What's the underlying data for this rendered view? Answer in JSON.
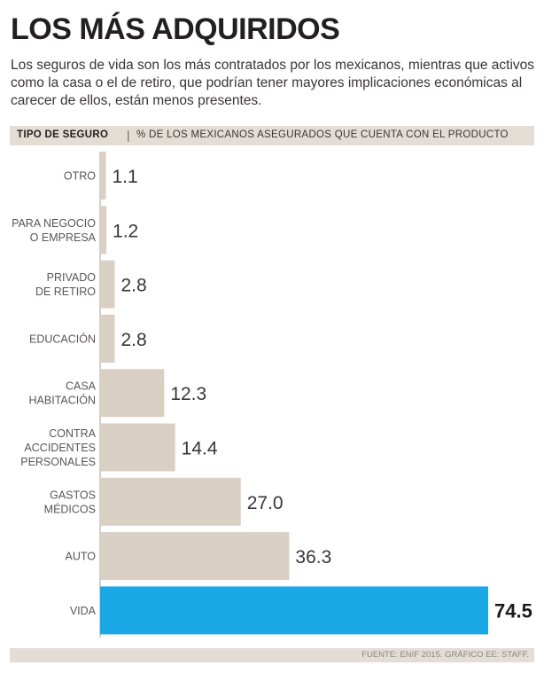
{
  "title": "LOS MÁS ADQUIRIDOS",
  "subtitle": "Los seguros de vida son los más contratados por los mexicanos, mientras que activos como la casa o el de retiro, que podrían tener mayores implicaciones económicas al carecer de ellos, están menos presentes.",
  "header": {
    "category_label": "TIPO DE SEGURO",
    "separator": "|",
    "value_label": "% DE LOS MEXICANOS ASEGURADOS QUE CUENTA CON EL PRODUCTO"
  },
  "footer": {
    "source": "FUENTE: ENIF 2015. GRÁFICO EE: STAFF."
  },
  "colors": {
    "bar": "#d9cfc3",
    "highlight": "#1aa7e6",
    "axis": "#c9bfb4",
    "label": "#5a5556",
    "value": "#3a3536",
    "highlight_value": "#1a1a1a"
  },
  "chart_data": {
    "type": "bar",
    "orientation": "horizontal",
    "title": "LOS MÁS ADQUIRIDOS",
    "xlabel": "% DE LOS MEXICANOS ASEGURADOS QUE CUENTA CON EL PRODUCTO",
    "ylabel": "TIPO DE SEGURO",
    "xlim": [
      0,
      80
    ],
    "grid": false,
    "categories": [
      [
        "OTRO"
      ],
      [
        "PARA NEGOCIO",
        "O EMPRESA"
      ],
      [
        "PRIVADO",
        "DE RETIRO"
      ],
      [
        "EDUCACIÓN"
      ],
      [
        "CASA",
        "HABITACIÓN"
      ],
      [
        "CONTRA",
        "ACCIDENTES",
        "PERSONALES"
      ],
      [
        "GASTOS",
        "MÉDICOS"
      ],
      [
        "AUTO"
      ],
      [
        "VIDA"
      ]
    ],
    "values": [
      1.1,
      1.2,
      2.8,
      2.8,
      12.3,
      14.4,
      27.0,
      36.3,
      74.5
    ],
    "value_labels": [
      "1.1",
      "1.2",
      "2.8",
      "2.8",
      "12.3",
      "14.4",
      "27.0",
      "36.3",
      "74.5"
    ],
    "highlight_index": 8
  }
}
